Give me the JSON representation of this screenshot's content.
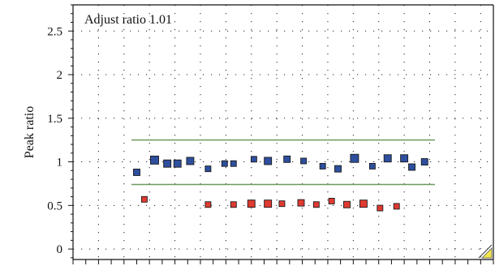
{
  "chart_data": {
    "type": "scatter",
    "title": "",
    "annotation": "Adjust ratio 1.01",
    "ylabel": "Peak ratio",
    "xlabel": "",
    "ylim": [
      -0.12,
      2.8
    ],
    "yticks": [
      0,
      0.5,
      1,
      1.5,
      2,
      2.5
    ],
    "ytick_labels": [
      "0",
      "0.5",
      "1",
      "1.5",
      "2",
      "2.5"
    ],
    "grid": true,
    "xlim": [
      0,
      33
    ],
    "reference_lines": [
      1.25,
      0.74
    ],
    "series": [
      {
        "color": "#2e4f9e",
        "points": [
          {
            "x": 5,
            "y": 0.88,
            "s": 8
          },
          {
            "x": 6.4,
            "y": 1.02,
            "s": 10
          },
          {
            "x": 7.4,
            "y": 0.98,
            "s": 9
          },
          {
            "x": 8.2,
            "y": 0.98,
            "s": 9
          },
          {
            "x": 9.2,
            "y": 1.01,
            "s": 9
          },
          {
            "x": 10.6,
            "y": 0.92,
            "s": 7
          },
          {
            "x": 11.9,
            "y": 0.98,
            "s": 7
          },
          {
            "x": 12.6,
            "y": 0.98,
            "s": 7
          },
          {
            "x": 14.2,
            "y": 1.03,
            "s": 7
          },
          {
            "x": 15.3,
            "y": 1.01,
            "s": 9
          },
          {
            "x": 16.8,
            "y": 1.03,
            "s": 8
          },
          {
            "x": 18.1,
            "y": 1.01,
            "s": 7
          },
          {
            "x": 19.6,
            "y": 0.95,
            "s": 7
          },
          {
            "x": 20.8,
            "y": 0.92,
            "s": 8
          },
          {
            "x": 22.1,
            "y": 1.04,
            "s": 10
          },
          {
            "x": 23.5,
            "y": 0.95,
            "s": 7
          },
          {
            "x": 24.7,
            "y": 1.04,
            "s": 9
          },
          {
            "x": 26,
            "y": 1.04,
            "s": 9
          },
          {
            "x": 26.6,
            "y": 0.94,
            "s": 8
          },
          {
            "x": 27.6,
            "y": 1.0,
            "s": 8
          }
        ]
      },
      {
        "color": "#e03a32",
        "points": [
          {
            "x": 5.6,
            "y": 0.57,
            "s": 7
          },
          {
            "x": 10.6,
            "y": 0.51,
            "s": 7
          },
          {
            "x": 12.6,
            "y": 0.51,
            "s": 7
          },
          {
            "x": 14,
            "y": 0.52,
            "s": 9
          },
          {
            "x": 15.3,
            "y": 0.52,
            "s": 9
          },
          {
            "x": 16.4,
            "y": 0.52,
            "s": 7
          },
          {
            "x": 17.9,
            "y": 0.53,
            "s": 8
          },
          {
            "x": 19.1,
            "y": 0.51,
            "s": 7
          },
          {
            "x": 20.3,
            "y": 0.55,
            "s": 7
          },
          {
            "x": 21.5,
            "y": 0.51,
            "s": 8
          },
          {
            "x": 22.8,
            "y": 0.52,
            "s": 9
          },
          {
            "x": 24.1,
            "y": 0.47,
            "s": 7
          },
          {
            "x": 25.4,
            "y": 0.49,
            "s": 7
          }
        ]
      }
    ]
  },
  "colors": {
    "reference_line": "#6e9a5a",
    "corner_marker": "#f1e54b"
  }
}
